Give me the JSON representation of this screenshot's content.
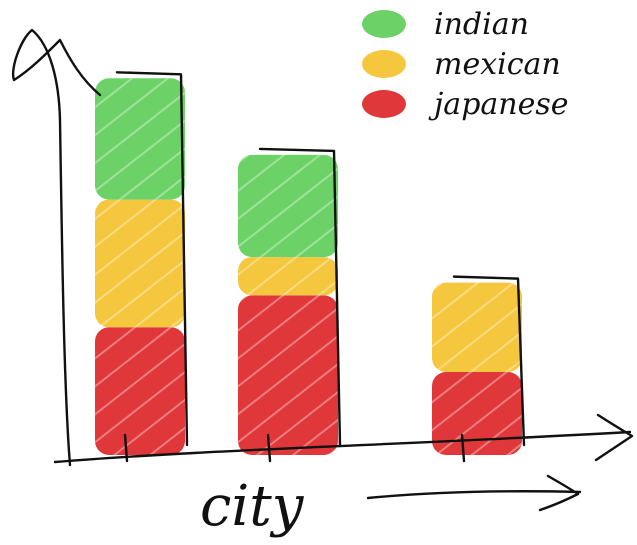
{
  "chart_data": {
    "type": "bar",
    "stacked": true,
    "title": "",
    "xlabel": "city",
    "ylabel": "",
    "categories": [
      "",
      "",
      ""
    ],
    "series": [
      {
        "name": "japanese",
        "color": "#e0383a",
        "values": [
          2,
          2.5,
          1.3
        ]
      },
      {
        "name": "mexican",
        "color": "#f5c73e",
        "values": [
          2,
          0.6,
          1.4
        ]
      },
      {
        "name": "indian",
        "color": "#6cd267",
        "values": [
          1.9,
          1.6,
          0
        ]
      }
    ],
    "series_order_legend": [
      "indian",
      "mexican",
      "japanese"
    ],
    "ylim": [
      0,
      6.5
    ],
    "grid": false,
    "legend_position": "top-right"
  }
}
